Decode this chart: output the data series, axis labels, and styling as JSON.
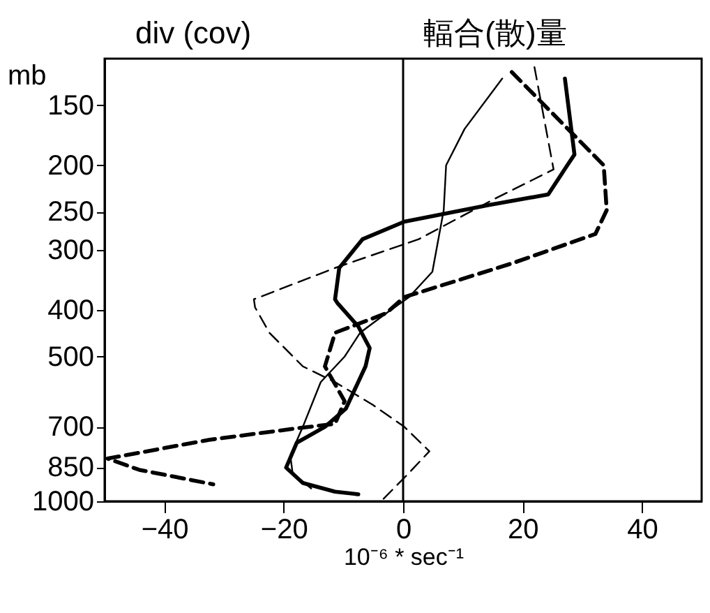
{
  "chart_data": {
    "type": "line",
    "title": "div (cov)",
    "xlabel": "10⁻⁶ * sec⁻¹",
    "ylabel": "mb",
    "annotations": [
      "輻合(散)量"
    ],
    "xlim": [
      -50,
      50
    ],
    "xticks": [
      -40,
      -20,
      0,
      20,
      40
    ],
    "ylim": [
      1000,
      120
    ],
    "yticks": [
      150,
      200,
      250,
      300,
      400,
      500,
      700,
      850,
      1000
    ],
    "log": "y",
    "ref_lines": [
      {
        "axis": "x",
        "value": 0
      }
    ],
    "series": [
      {
        "color": "#000000",
        "line_style": "solid",
        "x": [
          16.6,
          10.3,
          7.2,
          6.8,
          4.9,
          1.0,
          -2.8,
          -7.2,
          -9.8,
          -13.8,
          -16.8,
          -18.9,
          -18.5,
          -15.4
        ],
        "values": [
          132,
          168,
          200,
          248,
          333,
          376,
          406,
          446,
          500,
          565,
          700,
          803,
          875,
          940
        ]
      },
      {
        "color": "#000000",
        "line_style": "solid",
        "x": [
          27.1,
          28.7,
          27.5,
          24.3,
          14.3,
          0.2,
          -6.8,
          -10.7,
          -11.4,
          -11.0,
          -7.5,
          -5.6,
          -6.3,
          -9.6,
          -13.1,
          -17.8,
          -19.6,
          -16.8,
          -11.4,
          -7.5
        ],
        "values": [
          132,
          190,
          200,
          230,
          242,
          262,
          285,
          327,
          380,
          387,
          433,
          480,
          524,
          642,
          700,
          755,
          851,
          916,
          955,
          967
        ]
      },
      {
        "color": "#000000",
        "line_style": "dashed",
        "x": [
          22.0,
          25.2,
          15.0,
          2.6,
          -11.4,
          -25.0,
          -24.8,
          -22.4,
          -16.8,
          -11.4,
          -5.1,
          0.2,
          4.4,
          0.9,
          -3.7
        ],
        "values": [
          125,
          204,
          236,
          285,
          327,
          380,
          395,
          446,
          524,
          565,
          630,
          700,
          787,
          875,
          1000
        ]
      },
      {
        "color": "#000000",
        "line_style": "dashed",
        "x": [
          18.2,
          33.6,
          34.1,
          32.2,
          18.2,
          0.2,
          -2.8,
          -11.4,
          -13.1,
          -9.8,
          -11.4,
          -17.8,
          -32.5,
          -49.5,
          -44.2,
          -31.8
        ],
        "values": [
          128,
          200,
          248,
          278,
          320,
          376,
          406,
          446,
          524,
          619,
          690,
          705,
          745,
          815,
          860,
          922
        ]
      }
    ]
  }
}
